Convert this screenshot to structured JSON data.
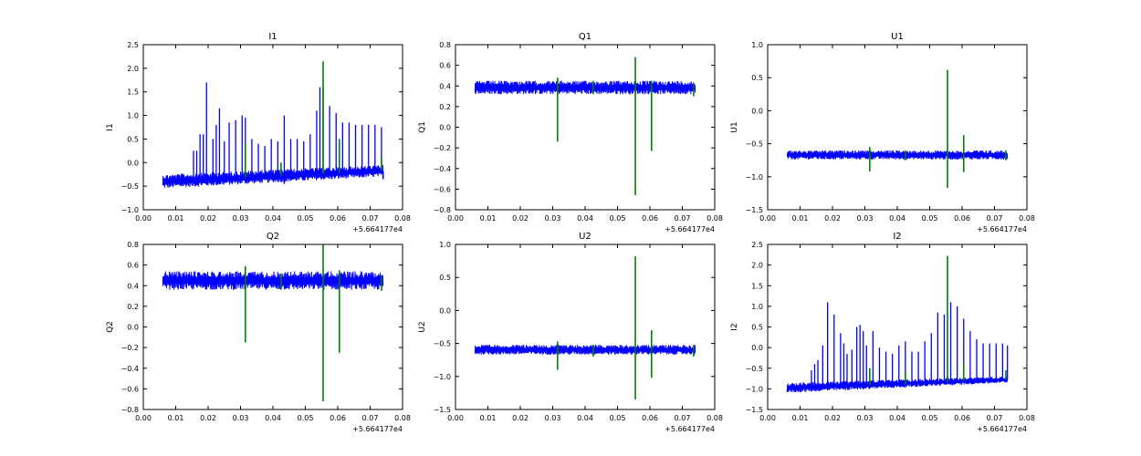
{
  "figure": {
    "background": "#ffffff",
    "line_colors": {
      "series_1": "#0000ff",
      "series_2": "#008000"
    }
  },
  "chart_data": [
    {
      "type": "line",
      "title": "I1",
      "ylabel": "I1",
      "xlabel": "",
      "x_offset_label": "+5.664177e4",
      "xlim": [
        0.0,
        0.08
      ],
      "ylim": [
        -1.0,
        2.5
      ],
      "xticks": [
        "0.00",
        "0.01",
        "0.02",
        "0.03",
        "0.04",
        "0.05",
        "0.06",
        "0.07",
        "0.08"
      ],
      "yticks": [
        "−1.0",
        "−0.5",
        "0.0",
        "0.5",
        "1.0",
        "1.5",
        "2.0",
        "2.5"
      ],
      "x_range": [
        0.006,
        0.074
      ],
      "grid": false,
      "series": [
        {
          "color": "#0000ff",
          "band_start": [
            -0.55,
            -0.25
          ],
          "band_end": [
            -0.3,
            -0.05
          ],
          "spikes": [
            [
              0.0155,
              0.25
            ],
            [
              0.0165,
              0.25
            ],
            [
              0.0175,
              0.6
            ],
            [
              0.0185,
              0.6
            ],
            [
              0.0195,
              1.7
            ],
            [
              0.0215,
              0.5
            ],
            [
              0.0225,
              0.8
            ],
            [
              0.0235,
              1.15
            ],
            [
              0.025,
              0.45
            ],
            [
              0.0265,
              0.85
            ],
            [
              0.0285,
              0.9
            ],
            [
              0.0305,
              1.0
            ],
            [
              0.0315,
              0.95
            ],
            [
              0.0335,
              0.5
            ],
            [
              0.0355,
              0.4
            ],
            [
              0.0375,
              0.35
            ],
            [
              0.0395,
              0.5
            ],
            [
              0.0415,
              0.45
            ],
            [
              0.0435,
              1.0
            ],
            [
              0.0455,
              0.5
            ],
            [
              0.0475,
              0.5
            ],
            [
              0.0495,
              0.45
            ],
            [
              0.0515,
              0.6
            ],
            [
              0.0535,
              1.1
            ],
            [
              0.0545,
              1.6
            ],
            [
              0.0555,
              1.6
            ],
            [
              0.0575,
              1.2
            ],
            [
              0.0595,
              1.05
            ],
            [
              0.0615,
              0.85
            ],
            [
              0.0635,
              0.85
            ],
            [
              0.0655,
              0.8
            ],
            [
              0.0675,
              0.8
            ],
            [
              0.0695,
              0.8
            ],
            [
              0.0715,
              0.8
            ],
            [
              0.0735,
              0.75
            ]
          ],
          "dips": [
            [
              0.0435,
              -0.45
            ],
            [
              0.074,
              -0.35
            ]
          ]
        },
        {
          "color": "#008000",
          "band_start": [],
          "band_end": [],
          "spikes": [
            [
              0.0315,
              0.4
            ],
            [
              0.0555,
              2.15
            ],
            [
              0.0605,
              0.5
            ],
            [
              0.0425,
              0.0
            ],
            [
              0.0735,
              0.1
            ]
          ],
          "dips": [
            [
              0.0315,
              -0.25
            ],
            [
              0.0555,
              -0.1
            ]
          ]
        }
      ]
    },
    {
      "type": "line",
      "title": "Q1",
      "ylabel": "Q1",
      "xlabel": "",
      "x_offset_label": "+5.664177e4",
      "xlim": [
        0.0,
        0.08
      ],
      "ylim": [
        -0.8,
        0.8
      ],
      "xticks": [
        "0.00",
        "0.01",
        "0.02",
        "0.03",
        "0.04",
        "0.05",
        "0.06",
        "0.07",
        "0.08"
      ],
      "yticks": [
        "−0.8",
        "−0.6",
        "−0.4",
        "−0.2",
        "0.0",
        "0.2",
        "0.4",
        "0.6",
        "0.8"
      ],
      "x_range": [
        0.006,
        0.074
      ],
      "grid": false,
      "series": [
        {
          "color": "#0000ff",
          "band_start": [
            0.32,
            0.45
          ],
          "band_end": [
            0.32,
            0.45
          ],
          "spikes": [],
          "dips": []
        },
        {
          "color": "#008000",
          "band_start": [],
          "band_end": [],
          "spikes": [
            [
              0.0315,
              0.48
            ],
            [
              0.0555,
              0.68
            ],
            [
              0.0605,
              0.45
            ],
            [
              0.0425,
              0.45
            ],
            [
              0.0735,
              0.42
            ]
          ],
          "dips": [
            [
              0.0315,
              -0.14
            ],
            [
              0.0555,
              -0.66
            ],
            [
              0.0605,
              -0.23
            ],
            [
              0.0425,
              0.32
            ],
            [
              0.0735,
              0.3
            ]
          ]
        }
      ]
    },
    {
      "type": "line",
      "title": "U1",
      "ylabel": "U1",
      "xlabel": "",
      "x_offset_label": "+5.664177e4",
      "xlim": [
        0.0,
        0.08
      ],
      "ylim": [
        -1.5,
        1.0
      ],
      "xticks": [
        "0.00",
        "0.01",
        "0.02",
        "0.03",
        "0.04",
        "0.05",
        "0.06",
        "0.07",
        "0.08"
      ],
      "yticks": [
        "−1.5",
        "−1.0",
        "−0.5",
        "0.0",
        "0.5",
        "1.0"
      ],
      "x_range": [
        0.006,
        0.074
      ],
      "grid": false,
      "series": [
        {
          "color": "#0000ff",
          "band_start": [
            -0.74,
            -0.6
          ],
          "band_end": [
            -0.74,
            -0.6
          ],
          "spikes": [],
          "dips": []
        },
        {
          "color": "#008000",
          "band_start": [],
          "band_end": [],
          "spikes": [
            [
              0.0315,
              -0.55
            ],
            [
              0.0555,
              0.62
            ],
            [
              0.0605,
              -0.37
            ],
            [
              0.0425,
              -0.6
            ],
            [
              0.0735,
              -0.6
            ]
          ],
          "dips": [
            [
              0.0315,
              -0.92
            ],
            [
              0.0555,
              -1.17
            ],
            [
              0.0605,
              -0.93
            ],
            [
              0.0425,
              -0.75
            ],
            [
              0.0735,
              -0.75
            ]
          ]
        }
      ]
    },
    {
      "type": "line",
      "title": "Q2",
      "ylabel": "Q2",
      "xlabel": "",
      "x_offset_label": "+5.664177e4",
      "xlim": [
        0.0,
        0.08
      ],
      "ylim": [
        -0.8,
        0.8
      ],
      "xticks": [
        "0.00",
        "0.01",
        "0.02",
        "0.03",
        "0.04",
        "0.05",
        "0.06",
        "0.07",
        "0.08"
      ],
      "yticks": [
        "−0.8",
        "−0.6",
        "−0.4",
        "−0.2",
        "0.0",
        "0.2",
        "0.4",
        "0.6",
        "0.8"
      ],
      "x_range": [
        0.006,
        0.074
      ],
      "grid": false,
      "series": [
        {
          "color": "#0000ff",
          "band_start": [
            0.36,
            0.54
          ],
          "band_end": [
            0.36,
            0.54
          ],
          "spikes": [],
          "dips": []
        },
        {
          "color": "#008000",
          "band_start": [],
          "band_end": [],
          "spikes": [
            [
              0.0315,
              0.59
            ],
            [
              0.0555,
              0.8
            ],
            [
              0.0605,
              0.55
            ],
            [
              0.0425,
              0.52
            ],
            [
              0.0735,
              0.5
            ]
          ],
          "dips": [
            [
              0.0315,
              -0.15
            ],
            [
              0.0555,
              -0.72
            ],
            [
              0.0605,
              -0.25
            ],
            [
              0.0425,
              0.36
            ],
            [
              0.0735,
              0.35
            ]
          ]
        }
      ]
    },
    {
      "type": "line",
      "title": "U2",
      "ylabel": "U2",
      "xlabel": "",
      "x_offset_label": "+5.664177e4",
      "xlim": [
        0.0,
        0.08
      ],
      "ylim": [
        -1.5,
        1.0
      ],
      "xticks": [
        "0.00",
        "0.01",
        "0.02",
        "0.03",
        "0.04",
        "0.05",
        "0.06",
        "0.07",
        "0.08"
      ],
      "yticks": [
        "−1.5",
        "−1.0",
        "−0.5",
        "0.0",
        "0.5",
        "1.0"
      ],
      "x_range": [
        0.006,
        0.074
      ],
      "grid": false,
      "series": [
        {
          "color": "#0000ff",
          "band_start": [
            -0.67,
            -0.52
          ],
          "band_end": [
            -0.67,
            -0.52
          ],
          "spikes": [],
          "dips": []
        },
        {
          "color": "#008000",
          "band_start": [],
          "band_end": [],
          "spikes": [
            [
              0.0315,
              -0.47
            ],
            [
              0.0555,
              0.82
            ],
            [
              0.0605,
              -0.3
            ],
            [
              0.0425,
              -0.52
            ],
            [
              0.0735,
              -0.52
            ]
          ],
          "dips": [
            [
              0.0315,
              -0.9
            ],
            [
              0.0555,
              -1.35
            ],
            [
              0.0605,
              -1.02
            ],
            [
              0.0425,
              -0.7
            ],
            [
              0.0735,
              -0.7
            ]
          ]
        }
      ]
    },
    {
      "type": "line",
      "title": "I2",
      "ylabel": "I2",
      "xlabel": "",
      "x_offset_label": "+5.664177e4",
      "xlim": [
        0.0,
        0.08
      ],
      "ylim": [
        -1.5,
        2.5
      ],
      "xticks": [
        "0.00",
        "0.01",
        "0.02",
        "0.03",
        "0.04",
        "0.05",
        "0.06",
        "0.07",
        "0.08"
      ],
      "yticks": [
        "−1.5",
        "−1.0",
        "−0.5",
        "0.0",
        "0.5",
        "1.0",
        "1.5",
        "2.0",
        "2.5"
      ],
      "x_range": [
        0.006,
        0.074
      ],
      "grid": false,
      "series": [
        {
          "color": "#0000ff",
          "band_start": [
            -1.1,
            -0.85
          ],
          "band_end": [
            -0.85,
            -0.7
          ],
          "spikes": [
            [
              0.0135,
              -0.55
            ],
            [
              0.0145,
              -0.4
            ],
            [
              0.0155,
              -0.3
            ],
            [
              0.017,
              0.05
            ],
            [
              0.0185,
              1.1
            ],
            [
              0.0205,
              0.8
            ],
            [
              0.0225,
              0.35
            ],
            [
              0.0235,
              0.1
            ],
            [
              0.0245,
              -0.15
            ],
            [
              0.026,
              -0.05
            ],
            [
              0.0275,
              0.5
            ],
            [
              0.0285,
              0.55
            ],
            [
              0.0295,
              0.4
            ],
            [
              0.0305,
              0.05
            ],
            [
              0.0325,
              0.4
            ],
            [
              0.0345,
              0.0
            ],
            [
              0.0365,
              -0.1
            ],
            [
              0.0385,
              -0.15
            ],
            [
              0.0405,
              0.05
            ],
            [
              0.0425,
              0.15
            ],
            [
              0.0445,
              -0.1
            ],
            [
              0.0465,
              -0.1
            ],
            [
              0.0485,
              0.15
            ],
            [
              0.0505,
              0.35
            ],
            [
              0.0525,
              0.85
            ],
            [
              0.0545,
              0.8
            ],
            [
              0.0565,
              1.1
            ],
            [
              0.0585,
              1.0
            ],
            [
              0.0605,
              0.7
            ],
            [
              0.0625,
              0.4
            ],
            [
              0.0645,
              0.2
            ],
            [
              0.0665,
              0.1
            ],
            [
              0.0685,
              0.1
            ],
            [
              0.0705,
              0.1
            ],
            [
              0.0725,
              0.1
            ],
            [
              0.074,
              0.05
            ]
          ],
          "dips": []
        },
        {
          "color": "#008000",
          "band_start": [],
          "band_end": [],
          "spikes": [
            [
              0.0555,
              2.22
            ],
            [
              0.0315,
              -0.5
            ],
            [
              0.0605,
              -0.4
            ],
            [
              0.0425,
              -0.6
            ],
            [
              0.0735,
              -0.55
            ]
          ],
          "dips": [
            [
              0.0555,
              -0.7
            ],
            [
              0.0315,
              -0.85
            ],
            [
              0.0425,
              -0.9
            ]
          ]
        }
      ]
    }
  ]
}
